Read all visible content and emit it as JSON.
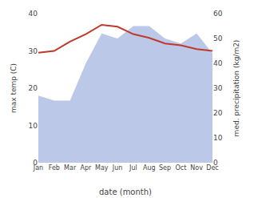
{
  "chart_data": {
    "type": "line",
    "xlabel": "date (month)",
    "ylabel": "max temp (C)",
    "y2label": "med. precipitation (kg/m2)",
    "categories": [
      "Jan",
      "Feb",
      "Mar",
      "Apr",
      "May",
      "Jun",
      "Jul",
      "Aug",
      "Sep",
      "Oct",
      "Nov",
      "Dec"
    ],
    "series": [
      {
        "type": "area",
        "axis": "y2",
        "color": "#bbc8e8",
        "values": [
          27.0,
          25.0,
          25.0,
          40.0,
          52.0,
          50.0,
          55.0,
          55.0,
          50.0,
          48.0,
          52.0,
          44.0
        ]
      },
      {
        "type": "line",
        "axis": "y",
        "color": "#c0392b",
        "values": [
          29.5,
          30.0,
          32.5,
          34.5,
          37.0,
          36.5,
          34.5,
          33.5,
          32.0,
          31.5,
          30.5,
          30.0
        ]
      }
    ],
    "ylim": [
      0,
      40
    ],
    "yticks": [
      0,
      10,
      20,
      30,
      40
    ],
    "y2lim": [
      0,
      60
    ],
    "y2ticks": [
      0,
      10,
      20,
      30,
      40,
      50,
      60
    ],
    "grid": false
  }
}
